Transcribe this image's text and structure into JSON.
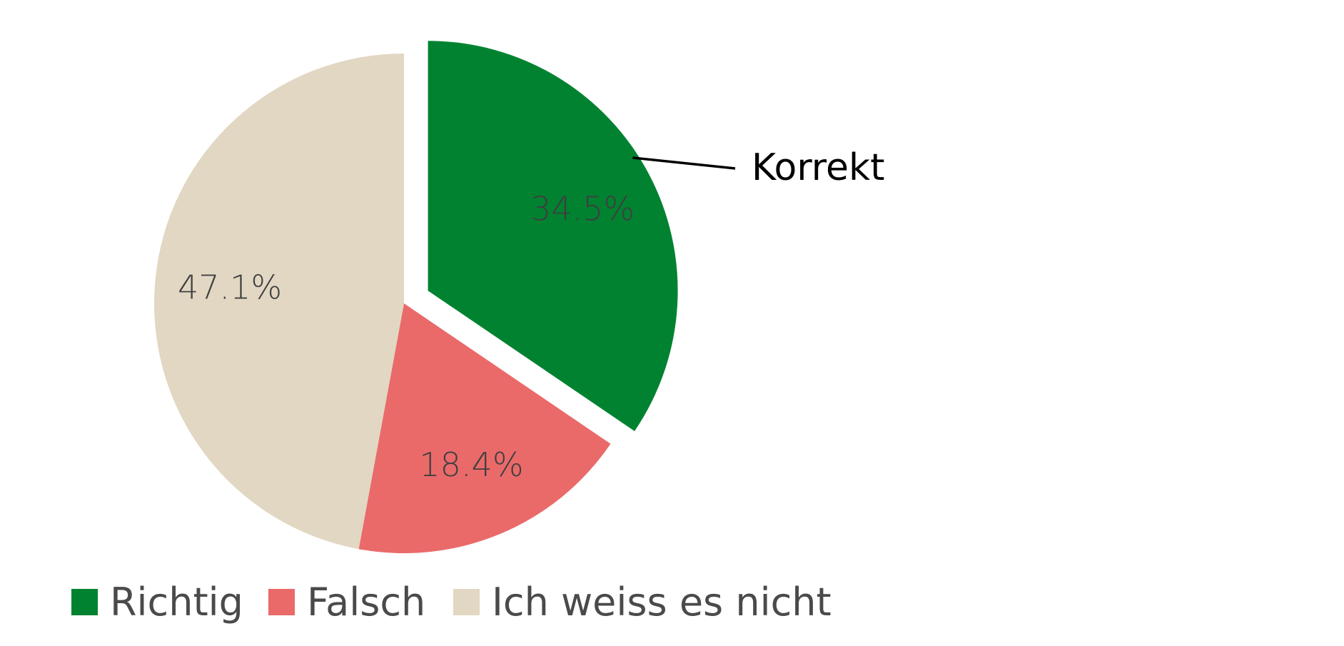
{
  "chart_data": {
    "type": "pie",
    "slices": [
      {
        "label": "Richtig",
        "value": 34.5,
        "display": "34.5%",
        "color": "#008230",
        "exploded": true
      },
      {
        "label": "Falsch",
        "value": 18.4,
        "display": "18.4%",
        "color": "#ea6a6a",
        "exploded": false
      },
      {
        "label": "Ich weiss es nicht",
        "value": 47.1,
        "display": "47.1%",
        "color": "#e1d7c3",
        "exploded": false
      }
    ],
    "start_angle": "12 o'clock",
    "direction": "clockwise",
    "annotation": {
      "text": "Korrekt",
      "target_slice": "Richtig"
    },
    "legend": {
      "position": "bottom-left",
      "entries": [
        "Richtig",
        "Falsch",
        "Ich weiss es nicht"
      ]
    }
  }
}
